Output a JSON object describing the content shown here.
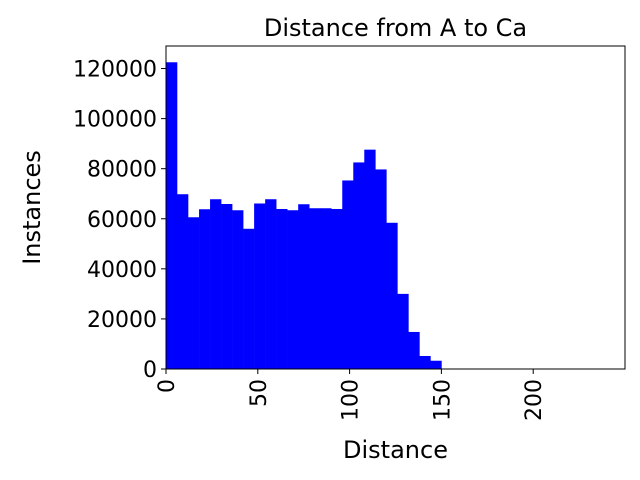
{
  "chart_data": {
    "type": "bar",
    "title": "Distance from A to Ca",
    "xlabel": "Distance",
    "ylabel": "Instances",
    "xlim": [
      0,
      250
    ],
    "ylim": [
      0,
      129000
    ],
    "bin_width": 6,
    "bin_starts": [
      0,
      6,
      12,
      18,
      24,
      30,
      36,
      42,
      48,
      54,
      60,
      66,
      72,
      78,
      84,
      90,
      96,
      102,
      108,
      114,
      120,
      126,
      132,
      138,
      144
    ],
    "values": [
      122500,
      69800,
      60600,
      63800,
      67800,
      65900,
      63400,
      56000,
      66100,
      67800,
      63900,
      63400,
      65800,
      64200,
      64200,
      63900,
      75300,
      82500,
      87600,
      79700,
      58400,
      30000,
      14800,
      5200,
      3300
    ],
    "x_ticks": [
      0,
      50,
      100,
      150,
      200
    ],
    "x_tick_labels": [
      "0",
      "50",
      "100",
      "150",
      "200"
    ],
    "y_ticks": [
      0,
      20000,
      40000,
      60000,
      80000,
      100000,
      120000
    ],
    "y_tick_labels": [
      "0",
      "20000",
      "40000",
      "60000",
      "80000",
      "100000",
      "120000"
    ],
    "bar_color": "#0000ff",
    "grid": false,
    "legend": "none"
  }
}
